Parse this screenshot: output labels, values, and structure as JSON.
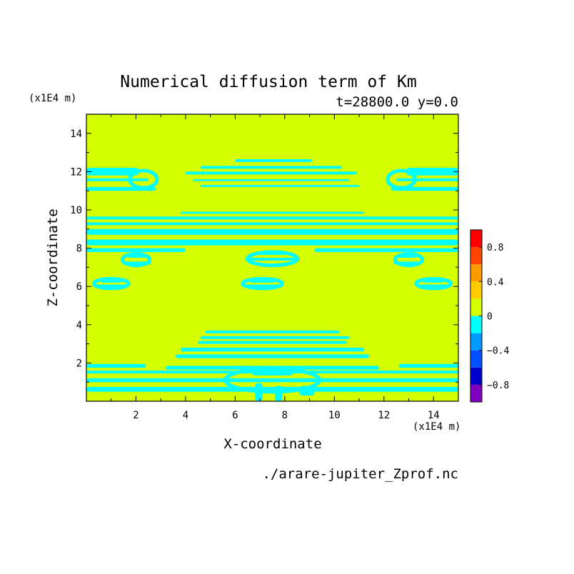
{
  "chart_data": {
    "type": "heatmap",
    "title": "Numerical diffusion term of Km",
    "subtitle": "t=28800.0 y=0.0",
    "xlabel": "X-coordinate",
    "ylabel": "Z-coordinate",
    "x_unit": "(x1E4 m)",
    "y_unit": "(x1E4 m)",
    "xlim": [
      0,
      15
    ],
    "ylim": [
      0,
      15
    ],
    "xticks": [
      2,
      4,
      6,
      8,
      10,
      12,
      14
    ],
    "yticks": [
      2,
      4,
      6,
      8,
      10,
      12,
      14
    ],
    "x_ticklabels": [
      "2",
      "4",
      "6",
      "8",
      "10",
      "12",
      "14"
    ],
    "y_ticklabels": [
      "2",
      "4",
      "6",
      "8",
      "10",
      "12",
      "14"
    ],
    "footer": "./arare-jupiter_Zprof.nc",
    "background_level": {
      "range": [
        0,
        0.2
      ],
      "color": "#d4ff00"
    },
    "contour_regions": [
      {
        "level": [
          -0.2,
          0
        ],
        "color": "#00ffff",
        "rects": [
          [
            0,
            0.5,
            15,
            0.75
          ],
          [
            0,
            1.0,
            15,
            1.2
          ],
          [
            0,
            1.45,
            15,
            1.6
          ],
          [
            0,
            1.75,
            2.4,
            1.95
          ],
          [
            3.2,
            1.65,
            11.8,
            1.85
          ],
          [
            12.6,
            1.75,
            15,
            1.95
          ],
          [
            3.6,
            2.25,
            11.4,
            2.45
          ],
          [
            3.8,
            2.6,
            11.2,
            2.8
          ],
          [
            4.5,
            3.0,
            10.5,
            3.15
          ],
          [
            4.6,
            3.25,
            10.6,
            3.4
          ],
          [
            4.8,
            3.55,
            10.2,
            3.7
          ],
          [
            0.3,
            5.95,
            1.7,
            6.1
          ],
          [
            0.6,
            6.2,
            1.4,
            6.35
          ],
          [
            6.3,
            5.95,
            7.9,
            6.1
          ],
          [
            6.6,
            6.2,
            7.6,
            6.35
          ],
          [
            13.3,
            5.95,
            14.7,
            6.1
          ],
          [
            13.6,
            6.2,
            14.4,
            6.35
          ],
          [
            1.5,
            7.15,
            2.6,
            7.3
          ],
          [
            1.7,
            7.5,
            2.4,
            7.65
          ],
          [
            12.4,
            7.15,
            13.5,
            7.3
          ],
          [
            12.6,
            7.5,
            13.3,
            7.65
          ],
          [
            6.4,
            7.35,
            8.6,
            7.5
          ],
          [
            6.9,
            7.65,
            8.1,
            7.8
          ],
          [
            0,
            7.8,
            4.0,
            8.0
          ],
          [
            9.2,
            7.8,
            15,
            8.0
          ],
          [
            0,
            8.15,
            15,
            8.45
          ],
          [
            0,
            8.7,
            15,
            9.0
          ],
          [
            0,
            9.2,
            15,
            9.35
          ],
          [
            0,
            9.5,
            15,
            9.65
          ],
          [
            3.8,
            9.8,
            11.2,
            9.9
          ],
          [
            0,
            11.0,
            2.8,
            11.2
          ],
          [
            0,
            11.5,
            2.5,
            11.65
          ],
          [
            0,
            11.8,
            2.1,
            12.2
          ],
          [
            4.6,
            11.2,
            11.0,
            11.3
          ],
          [
            4.3,
            11.5,
            10.6,
            11.6
          ],
          [
            4.0,
            11.85,
            10.9,
            12.0
          ],
          [
            4.6,
            12.15,
            10.3,
            12.3
          ],
          [
            6.0,
            12.5,
            9.1,
            12.65
          ],
          [
            12.3,
            11.0,
            15,
            11.2
          ],
          [
            12.5,
            11.5,
            15,
            11.65
          ],
          [
            12.9,
            11.8,
            15,
            12.2
          ],
          [
            6.8,
            0.0,
            7.1,
            0.95
          ],
          [
            7.6,
            0.0,
            7.9,
            0.8
          ],
          [
            8.6,
            0.3,
            9.2,
            0.8
          ],
          [
            6.7,
            1.35,
            8.3,
            1.5
          ]
        ]
      },
      {
        "level": [
          -0.2,
          0
        ],
        "color": "#00ffff",
        "ellipses": [
          [
            2.3,
            11.6,
            0.55,
            0.45
          ],
          [
            12.7,
            11.6,
            0.55,
            0.45
          ],
          [
            2.0,
            7.4,
            0.55,
            0.3
          ],
          [
            13.0,
            7.4,
            0.55,
            0.3
          ],
          [
            1.0,
            6.15,
            0.7,
            0.25
          ],
          [
            7.1,
            6.15,
            0.8,
            0.25
          ],
          [
            14.0,
            6.15,
            0.7,
            0.25
          ],
          [
            7.5,
            7.45,
            1.0,
            0.35
          ],
          [
            7.5,
            1.1,
            1.9,
            0.6
          ]
        ]
      }
    ],
    "colorbar": {
      "levels": [
        -1.0,
        -0.8,
        -0.6,
        -0.4,
        -0.2,
        0,
        0.2,
        0.4,
        0.6,
        0.8,
        1.0
      ],
      "colors": [
        "#8000c0",
        "#0000cc",
        "#0050ff",
        "#0099ff",
        "#00ffff",
        "#d4ff00",
        "#ffcc00",
        "#ff9900",
        "#ff4400",
        "#ff0000",
        "#ffb0b0"
      ],
      "tick_values": [
        -0.8,
        -0.4,
        0,
        0.4,
        0.8
      ],
      "tick_labels": [
        "−0.8",
        "−0.4",
        "0",
        "0.4",
        "0.8"
      ]
    }
  }
}
